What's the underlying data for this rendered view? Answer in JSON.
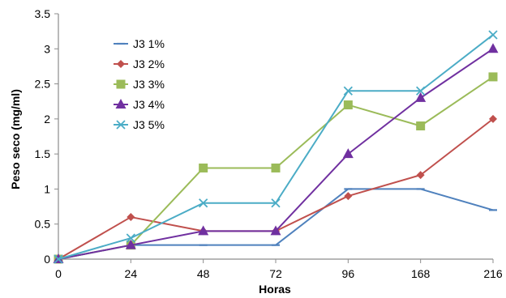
{
  "chart_data": {
    "type": "line",
    "xlabel": "Horas",
    "ylabel": "Peso seco (mg/ml)",
    "categories": [
      "0",
      "24",
      "48",
      "72",
      "96",
      "168",
      "216"
    ],
    "ylim": [
      0,
      3.5
    ],
    "yticks": [
      "0",
      "0.5",
      "1",
      "1.5",
      "2",
      "2.5",
      "3",
      "3.5"
    ],
    "grid": false,
    "legend_position": "top-left",
    "series": [
      {
        "name": "J3 1%",
        "color": "#4f81bd",
        "marker": "dash",
        "values": [
          0,
          0.2,
          0.2,
          0.2,
          1.0,
          1.0,
          0.7
        ]
      },
      {
        "name": "J3 2%",
        "color": "#c0504d",
        "marker": "diamond",
        "values": [
          0,
          0.6,
          0.4,
          0.4,
          0.9,
          1.2,
          2.0
        ]
      },
      {
        "name": "J3 3%",
        "color": "#9bbb59",
        "marker": "square",
        "values": [
          0,
          0.2,
          1.3,
          1.3,
          2.2,
          1.9,
          2.6
        ]
      },
      {
        "name": "J3 4%",
        "color": "#7030a0",
        "marker": "triangle",
        "values": [
          0,
          0.2,
          0.4,
          0.4,
          1.5,
          2.3,
          3.0
        ]
      },
      {
        "name": "J3 5%",
        "color": "#4bacc6",
        "marker": "x",
        "values": [
          0,
          0.3,
          0.8,
          0.8,
          2.4,
          2.4,
          3.2
        ]
      }
    ]
  }
}
